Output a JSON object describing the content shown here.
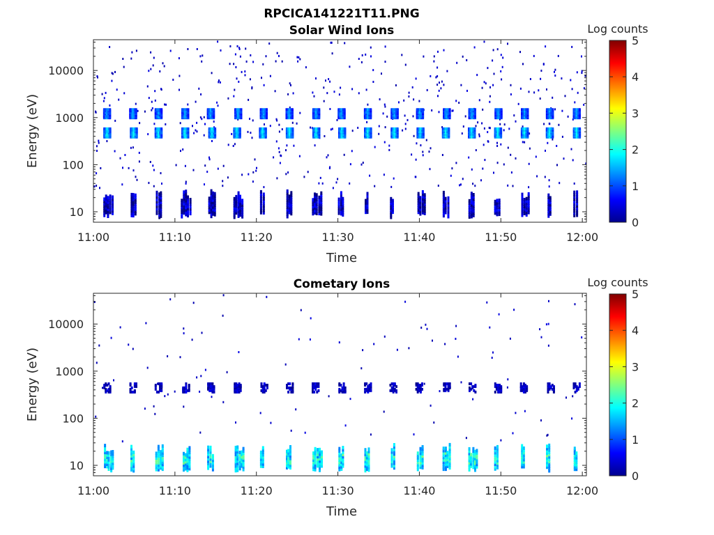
{
  "figure": {
    "title": "RPCICA141221T11.PNG",
    "colors": {
      "axis": "#262626",
      "background": "#ffffff",
      "colormap": [
        "#00008f",
        "#0000ff",
        "#0080ff",
        "#00ffff",
        "#80ff80",
        "#ffff00",
        "#ff8000",
        "#ff0000",
        "#800000"
      ]
    }
  },
  "chart_data": [
    {
      "type": "heatmap",
      "title": "Solar Wind Ions",
      "xlabel": "Time",
      "ylabel": "Energy (eV)",
      "xticks": [
        "11:00",
        "11:10",
        "11:20",
        "11:30",
        "11:40",
        "11:50",
        "12:00"
      ],
      "x_minutes": [
        0,
        10,
        20,
        30,
        40,
        50,
        60
      ],
      "xlim_minutes": [
        0,
        60.5
      ],
      "yscale": "log",
      "ylim": [
        6,
        45000
      ],
      "yticks": [
        10,
        100,
        1000,
        10000
      ],
      "ytick_labels": [
        "10",
        "100",
        "1000",
        "10000"
      ],
      "colorbar": {
        "label": "Log counts",
        "range": [
          0,
          5
        ],
        "ticks": [
          "0",
          "1",
          "2",
          "3",
          "4",
          "5"
        ]
      },
      "sweep_period_minutes": 3.2,
      "bands": [
        {
          "energy_eV": 450,
          "typical_log_counts": 1.8,
          "note": "repeating bright blobs once per sweep"
        },
        {
          "energy_eV": 1150,
          "typical_log_counts": 1.4,
          "note": "repeating blobs once per sweep"
        },
        {
          "energy_eV": 14,
          "typical_log_counts": 0.3,
          "note": "low-energy columns 8-30 eV"
        }
      ],
      "background_scatter_log_counts": 0.2
    },
    {
      "type": "heatmap",
      "title": "Cometary Ions",
      "xlabel": "Time",
      "ylabel": "Energy (eV)",
      "xticks": [
        "11:00",
        "11:10",
        "11:20",
        "11:30",
        "11:40",
        "11:50",
        "12:00"
      ],
      "x_minutes": [
        0,
        10,
        20,
        30,
        40,
        50,
        60
      ],
      "xlim_minutes": [
        0,
        60.5
      ],
      "yscale": "log",
      "ylim": [
        6,
        45000
      ],
      "yticks": [
        10,
        100,
        1000,
        10000
      ],
      "ytick_labels": [
        "10",
        "100",
        "1000",
        "10000"
      ],
      "colorbar": {
        "label": "Log counts",
        "range": [
          0,
          5
        ],
        "ticks": [
          "0",
          "1",
          "2",
          "3",
          "4",
          "5"
        ]
      },
      "sweep_period_minutes": 3.2,
      "bands": [
        {
          "energy_eV": 14,
          "typical_log_counts": 1.6,
          "note": "bright low-energy columns 7-22 eV"
        },
        {
          "energy_eV": 420,
          "typical_log_counts": 0.4,
          "note": "faint marks once per sweep"
        }
      ],
      "background_scatter_log_counts": 0.2
    }
  ]
}
